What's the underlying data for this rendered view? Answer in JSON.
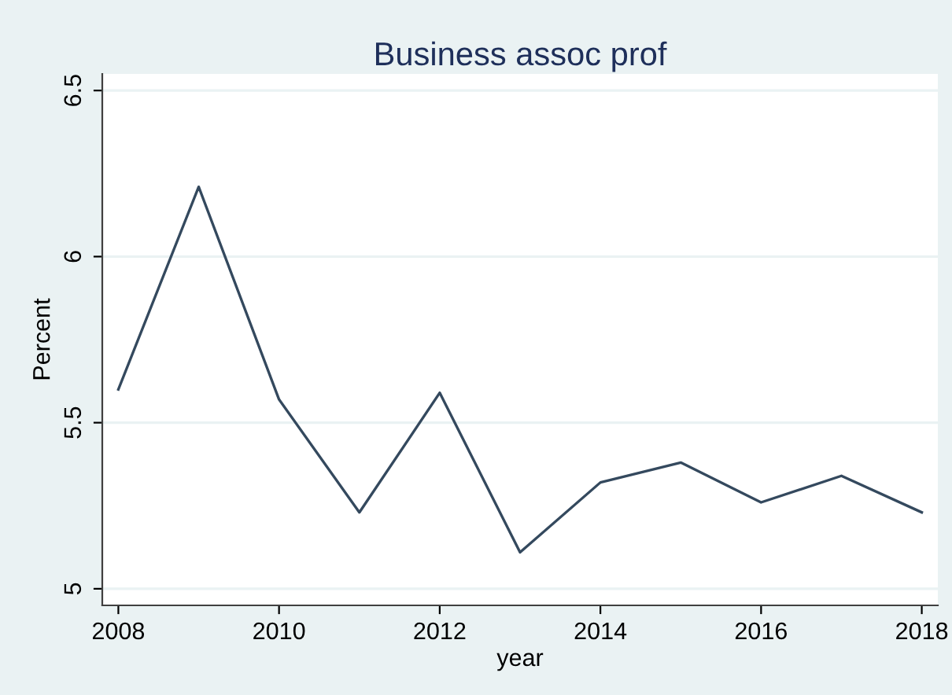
{
  "chart_data": {
    "type": "line",
    "title": "Business assoc prof",
    "xlabel": "year",
    "ylabel": "Percent",
    "x": [
      2008,
      2009,
      2010,
      2011,
      2012,
      2013,
      2014,
      2015,
      2016,
      2017,
      2018
    ],
    "series": [
      {
        "color": "#34495e",
        "values": [
          5.6,
          6.21,
          5.57,
          5.23,
          5.59,
          5.11,
          5.32,
          5.38,
          5.26,
          5.34,
          5.23
        ]
      }
    ],
    "xlim": [
      2007.8,
      2018.2
    ],
    "ylim": [
      4.95,
      6.55
    ],
    "xticks": [
      2008,
      2010,
      2012,
      2014,
      2016,
      2018
    ],
    "yticks": [
      5,
      5.5,
      6,
      6.5
    ],
    "grid": "y",
    "marker": "none",
    "line_style": "solid"
  }
}
